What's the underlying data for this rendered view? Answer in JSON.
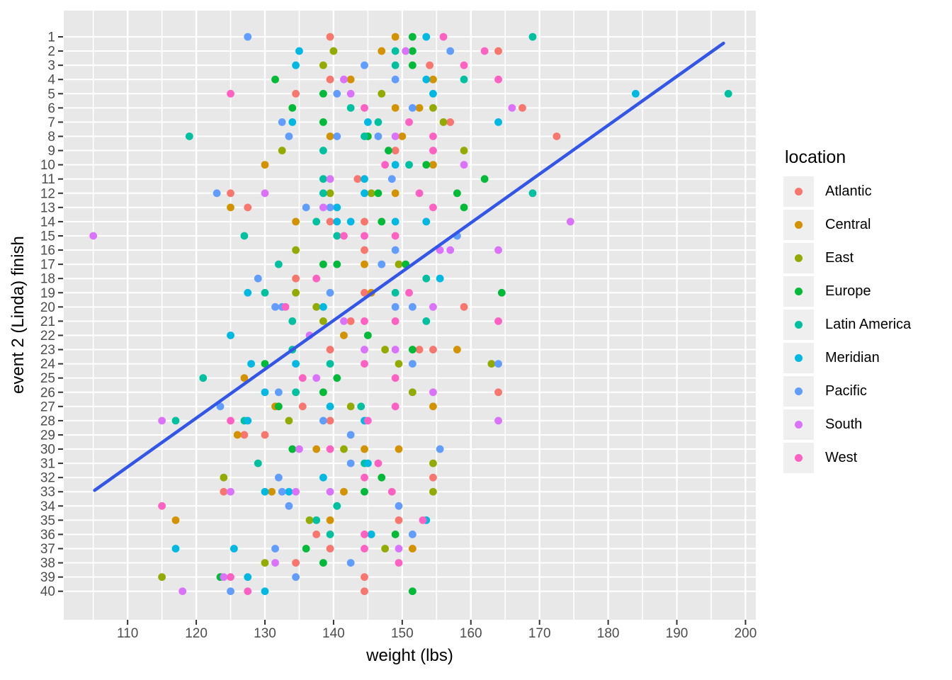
{
  "chart_data": {
    "type": "scatter",
    "title": "",
    "xlabel": "weight (lbs)",
    "ylabel": "event 2 (Linda) finish",
    "legend_title": "location",
    "legend_position": "right",
    "grid": true,
    "panel_bg": "#E8E8E8",
    "grid_color": "#FFFFFF",
    "tick_label_color": "#4D4D4D",
    "x_domain": [
      100.7,
      201.5
    ],
    "x_ticks": [
      110,
      120,
      130,
      140,
      150,
      160,
      170,
      180,
      190,
      200
    ],
    "x_minor_ticks": [
      105,
      115,
      125,
      135,
      145,
      155,
      165,
      175,
      185,
      195
    ],
    "y_ticks": [
      1,
      2,
      3,
      4,
      5,
      6,
      7,
      8,
      9,
      10,
      11,
      12,
      13,
      14,
      15,
      16,
      17,
      18,
      19,
      20,
      21,
      22,
      23,
      24,
      25,
      26,
      27,
      28,
      29,
      30,
      31,
      32,
      33,
      34,
      35,
      36,
      37,
      38,
      39,
      40
    ],
    "y_axis_reversed_top_to_bottom": true,
    "trend_line": {
      "color": "#3355E8",
      "x": [
        105.2,
        196.8
      ],
      "finish": [
        32.9,
        1.45
      ]
    },
    "series": [
      {
        "name": "Atlantic",
        "color": "#F8766D",
        "points": [
          [
            139.5,
            1
          ],
          [
            164,
            2
          ],
          [
            154,
            3
          ],
          [
            139.5,
            4
          ],
          [
            134.5,
            5
          ],
          [
            167.5,
            6
          ],
          [
            157,
            7
          ],
          [
            172.5,
            8
          ],
          [
            149,
            9
          ],
          [
            143.5,
            11
          ],
          [
            125,
            12
          ],
          [
            127.5,
            13
          ],
          [
            139.5,
            14
          ],
          [
            144.5,
            14
          ],
          [
            144.5,
            16
          ],
          [
            134.5,
            18
          ],
          [
            144.5,
            19
          ],
          [
            159,
            20
          ],
          [
            142.5,
            21
          ],
          [
            139.5,
            23
          ],
          [
            152.5,
            23
          ],
          [
            154.5,
            23
          ],
          [
            164,
            26
          ],
          [
            135.5,
            27
          ],
          [
            139.5,
            28
          ],
          [
            127,
            29
          ],
          [
            130,
            29
          ],
          [
            154.5,
            32
          ],
          [
            124,
            33
          ],
          [
            149.5,
            35
          ],
          [
            137.5,
            36
          ],
          [
            139.5,
            37
          ],
          [
            134.5,
            38
          ],
          [
            144.5,
            39
          ],
          [
            144.5,
            40
          ]
        ]
      },
      {
        "name": "Central",
        "color": "#D39200",
        "points": [
          [
            149,
            1
          ],
          [
            147,
            2
          ],
          [
            142.5,
            4
          ],
          [
            154.5,
            4
          ],
          [
            149,
            6
          ],
          [
            152.5,
            6
          ],
          [
            139.5,
            8
          ],
          [
            150,
            8
          ],
          [
            130,
            10
          ],
          [
            154.5,
            10
          ],
          [
            149,
            12
          ],
          [
            125,
            13
          ],
          [
            134.5,
            14
          ],
          [
            144.5,
            17
          ],
          [
            145.5,
            19
          ],
          [
            141.5,
            22
          ],
          [
            158,
            23
          ],
          [
            127,
            25
          ],
          [
            131.5,
            27
          ],
          [
            154.5,
            27
          ],
          [
            126,
            29
          ],
          [
            137.5,
            30
          ],
          [
            144.5,
            30
          ],
          [
            149.5,
            30
          ],
          [
            131,
            33
          ],
          [
            141.5,
            33
          ],
          [
            117,
            35
          ],
          [
            139.5,
            35
          ],
          [
            151.5,
            37
          ]
        ]
      },
      {
        "name": "East",
        "color": "#93AA00",
        "points": [
          [
            140,
            2
          ],
          [
            138.5,
            3
          ],
          [
            147,
            5
          ],
          [
            154.5,
            6
          ],
          [
            156,
            7
          ],
          [
            132.5,
            9
          ],
          [
            159,
            9
          ],
          [
            139.5,
            12
          ],
          [
            145.5,
            12
          ],
          [
            134.5,
            16
          ],
          [
            149.5,
            17
          ],
          [
            134.5,
            19
          ],
          [
            137.5,
            20
          ],
          [
            138.5,
            21
          ],
          [
            147.5,
            23
          ],
          [
            149.5,
            24
          ],
          [
            163,
            24
          ],
          [
            151.5,
            26
          ],
          [
            142.5,
            27
          ],
          [
            133.5,
            28
          ],
          [
            141.5,
            30
          ],
          [
            154.5,
            31
          ],
          [
            124,
            32
          ],
          [
            154.5,
            33
          ],
          [
            136.5,
            35
          ],
          [
            147.5,
            37
          ],
          [
            130,
            38
          ],
          [
            115,
            39
          ]
        ]
      },
      {
        "name": "Europe",
        "color": "#00BA38",
        "points": [
          [
            151.5,
            1
          ],
          [
            151.5,
            2
          ],
          [
            151.5,
            3
          ],
          [
            131.5,
            4
          ],
          [
            138.5,
            5
          ],
          [
            134,
            6
          ],
          [
            138.5,
            7
          ],
          [
            145,
            8
          ],
          [
            148,
            9
          ],
          [
            153.5,
            10
          ],
          [
            162,
            11
          ],
          [
            146.5,
            12
          ],
          [
            158,
            12
          ],
          [
            159,
            13
          ],
          [
            147,
            14
          ],
          [
            138.5,
            17
          ],
          [
            140.5,
            17
          ],
          [
            150.5,
            17
          ],
          [
            164.5,
            19
          ],
          [
            145,
            22
          ],
          [
            151.5,
            23
          ],
          [
            130,
            24
          ],
          [
            140.5,
            25
          ],
          [
            138.5,
            26
          ],
          [
            132,
            27
          ],
          [
            134,
            30
          ],
          [
            147,
            32
          ],
          [
            144.5,
            33
          ],
          [
            149,
            36
          ],
          [
            136,
            37
          ],
          [
            138.5,
            38
          ],
          [
            123.5,
            39
          ],
          [
            151.5,
            40
          ]
        ]
      },
      {
        "name": "Latin America",
        "color": "#00C19F",
        "points": [
          [
            169,
            1
          ],
          [
            149,
            2
          ],
          [
            149,
            3
          ],
          [
            159,
            4
          ],
          [
            197.5,
            5
          ],
          [
            142.5,
            6
          ],
          [
            146.5,
            7
          ],
          [
            119,
            8
          ],
          [
            144.5,
            8
          ],
          [
            138.5,
            9
          ],
          [
            151,
            10
          ],
          [
            138.5,
            11
          ],
          [
            138.5,
            12
          ],
          [
            169,
            12
          ],
          [
            137.5,
            14
          ],
          [
            127,
            15
          ],
          [
            140.5,
            15
          ],
          [
            132,
            17
          ],
          [
            153.5,
            18
          ],
          [
            130,
            19
          ],
          [
            149,
            19
          ],
          [
            134,
            21
          ],
          [
            153.5,
            21
          ],
          [
            134,
            23
          ],
          [
            139.5,
            24
          ],
          [
            121,
            25
          ],
          [
            134.5,
            26
          ],
          [
            144,
            27
          ],
          [
            117,
            28
          ],
          [
            127,
            28
          ],
          [
            129,
            31
          ],
          [
            144.5,
            31
          ],
          [
            140.5,
            34
          ],
          [
            137.5,
            35
          ],
          [
            139.5,
            36
          ]
        ]
      },
      {
        "name": "Meridian",
        "color": "#00B9E3",
        "points": [
          [
            153.5,
            1
          ],
          [
            135,
            2
          ],
          [
            134.5,
            3
          ],
          [
            153.5,
            4
          ],
          [
            154.5,
            5
          ],
          [
            184,
            5
          ],
          [
            134,
            7
          ],
          [
            145,
            7
          ],
          [
            164,
            7
          ],
          [
            149,
            10
          ],
          [
            144.5,
            11
          ],
          [
            144.5,
            12
          ],
          [
            140.5,
            13
          ],
          [
            140.5,
            14
          ],
          [
            142.5,
            14
          ],
          [
            149,
            14
          ],
          [
            153.5,
            14
          ],
          [
            155.5,
            18
          ],
          [
            127.5,
            19
          ],
          [
            138.5,
            20
          ],
          [
            125,
            22
          ],
          [
            128,
            24
          ],
          [
            134.5,
            24
          ],
          [
            130,
            26
          ],
          [
            139.5,
            27
          ],
          [
            127.5,
            28
          ],
          [
            144.5,
            28
          ],
          [
            145,
            31
          ],
          [
            138.5,
            32
          ],
          [
            130,
            33
          ],
          [
            133.5,
            33
          ],
          [
            153.5,
            35
          ],
          [
            145.5,
            36
          ],
          [
            117,
            37
          ],
          [
            125.5,
            37
          ],
          [
            127.5,
            39
          ],
          [
            130,
            40
          ]
        ]
      },
      {
        "name": "Pacific",
        "color": "#619CFF",
        "points": [
          [
            127.5,
            1
          ],
          [
            157,
            2
          ],
          [
            144.5,
            3
          ],
          [
            149,
            4
          ],
          [
            140.5,
            5
          ],
          [
            151.5,
            6
          ],
          [
            132.5,
            7
          ],
          [
            133.5,
            8
          ],
          [
            140.5,
            8
          ],
          [
            146.5,
            8
          ],
          [
            148.5,
            11
          ],
          [
            123,
            12
          ],
          [
            136,
            13
          ],
          [
            139.5,
            13
          ],
          [
            158,
            15
          ],
          [
            149,
            16
          ],
          [
            147,
            17
          ],
          [
            129,
            18
          ],
          [
            139.5,
            19
          ],
          [
            131.5,
            20
          ],
          [
            132.5,
            20
          ],
          [
            149,
            20
          ],
          [
            151.5,
            20
          ],
          [
            151.5,
            24
          ],
          [
            164,
            24
          ],
          [
            132,
            26
          ],
          [
            123.5,
            27
          ],
          [
            138.5,
            28
          ],
          [
            142.5,
            29
          ],
          [
            155.5,
            30
          ],
          [
            142.5,
            31
          ],
          [
            132,
            32
          ],
          [
            132.5,
            33
          ],
          [
            133.5,
            34
          ],
          [
            149.5,
            34
          ],
          [
            151.5,
            36
          ],
          [
            131.5,
            37
          ],
          [
            142.5,
            38
          ],
          [
            134.5,
            39
          ],
          [
            125,
            40
          ]
        ]
      },
      {
        "name": "South",
        "color": "#DB72FB",
        "points": [
          [
            150.5,
            2
          ],
          [
            141.5,
            4
          ],
          [
            142.5,
            5
          ],
          [
            166,
            6
          ],
          [
            149,
            8
          ],
          [
            159,
            10
          ],
          [
            139.5,
            11
          ],
          [
            130,
            12
          ],
          [
            138.5,
            13
          ],
          [
            174.5,
            14
          ],
          [
            105,
            15
          ],
          [
            155.5,
            16
          ],
          [
            157,
            16
          ],
          [
            164,
            16
          ],
          [
            154.5,
            20
          ],
          [
            141.5,
            21
          ],
          [
            136.5,
            22
          ],
          [
            144.5,
            23
          ],
          [
            149,
            23
          ],
          [
            137.5,
            25
          ],
          [
            154.5,
            26
          ],
          [
            115,
            28
          ],
          [
            164,
            28
          ],
          [
            135,
            30
          ],
          [
            125,
            33
          ],
          [
            134.5,
            33
          ],
          [
            139.5,
            33
          ],
          [
            149.5,
            37
          ],
          [
            131.5,
            38
          ],
          [
            124,
            39
          ],
          [
            118,
            40
          ]
        ]
      },
      {
        "name": "West",
        "color": "#FF61C3",
        "points": [
          [
            156,
            1
          ],
          [
            162,
            2
          ],
          [
            159,
            3
          ],
          [
            164,
            4
          ],
          [
            125,
            5
          ],
          [
            144.5,
            6
          ],
          [
            151,
            7
          ],
          [
            154.5,
            8
          ],
          [
            154.5,
            9
          ],
          [
            147.5,
            10
          ],
          [
            152.5,
            12
          ],
          [
            154.5,
            13
          ],
          [
            141.5,
            15
          ],
          [
            144.5,
            15
          ],
          [
            149,
            15
          ],
          [
            137.5,
            18
          ],
          [
            151,
            19
          ],
          [
            133,
            20
          ],
          [
            144.5,
            21
          ],
          [
            149,
            21
          ],
          [
            164,
            21
          ],
          [
            144.5,
            24
          ],
          [
            135.5,
            25
          ],
          [
            149,
            25
          ],
          [
            149,
            27
          ],
          [
            125,
            28
          ],
          [
            145,
            28
          ],
          [
            139.5,
            30
          ],
          [
            146.5,
            31
          ],
          [
            144.5,
            32
          ],
          [
            148.5,
            33
          ],
          [
            115,
            34
          ],
          [
            153,
            35
          ],
          [
            144.5,
            36
          ],
          [
            144.5,
            37
          ],
          [
            149.5,
            38
          ],
          [
            125,
            39
          ],
          [
            127.5,
            40
          ]
        ]
      }
    ]
  }
}
